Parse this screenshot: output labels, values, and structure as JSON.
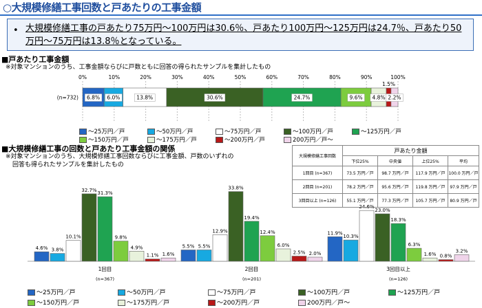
{
  "title": "○大規模修繕工事回数と戸あたりの工事金額",
  "summary": {
    "bullet": "•",
    "text": "大規模修繕工事の戸あたり75万円～100万円は30.6％、戸あたり100万円～125万円は24.7％、戸あたり50万円～75万円は13.8％となっている。"
  },
  "section1": {
    "heading": "■戸あたり工事金額",
    "note": "※対象マンションのうち、工事金額ならびに戸数ともに回答の得られたサンプルを集計したもの"
  },
  "section2": {
    "heading": "■大規模修繕工事の回数と戸あたり工事金額の関係",
    "note1": "※対象マンションのうち、大規模修繕工事回数ならびに工事金額、戸数のいずれの",
    "note2": "回答も得られたサンプルを集計したもの"
  },
  "colors": [
    "#2366c4",
    "#17a9e1",
    "#ffffff",
    "#3a6124",
    "#1fa351",
    "#7dcc3e",
    "#e8f2dc",
    "#b81818",
    "#f0d4ea"
  ],
  "chart_data": [
    {
      "type": "bar",
      "orientation": "stacked-horizontal-100%",
      "row_label": "(n=732)",
      "x_ticks": [
        "0%",
        "10%",
        "20%",
        "30%",
        "40%",
        "50%",
        "60%",
        "70%",
        "80%",
        "90%",
        "100%"
      ],
      "xlim": [
        0,
        100
      ],
      "series": [
        {
          "name": "～25万円／戸",
          "value": 6.8
        },
        {
          "name": "～50万円／戸",
          "value": 6.0
        },
        {
          "name": "～75万円／戸",
          "value": 13.8
        },
        {
          "name": "～100万円／戸",
          "value": 30.6
        },
        {
          "name": "～125万円／戸",
          "value": 24.7
        },
        {
          "name": "～150万円／戸",
          "value": 9.6
        },
        {
          "name": "～175万円／戸",
          "value": 4.8
        },
        {
          "name": "～200万円／戸",
          "value": 1.5
        },
        {
          "name": "200万円／戸～",
          "value": 2.2
        }
      ],
      "labels": [
        "6.8%",
        "6.0%",
        "13.8%",
        "30.6%",
        "24.7%",
        "9.6%",
        "4.8%",
        "1.5%",
        "2.2%"
      ],
      "legend": [
        "～25万円／戸",
        "～50万円／戸",
        "～75万円／戸",
        "～100万円／戸",
        "～125万円／戸",
        "～150万円／戸",
        "～175万円／戸",
        "～200万円／戸",
        "200万円／戸～"
      ],
      "legend_placement": "bottom"
    },
    {
      "type": "bar",
      "orientation": "grouped-vertical",
      "categories": [
        "1回目",
        "2回目",
        "3回目以上"
      ],
      "category_n": [
        "(n=367)",
        "(n=201)",
        "(n=126)"
      ],
      "ylim": [
        0,
        40
      ],
      "series": [
        {
          "name": "～25万円／戸",
          "values": [
            4.6,
            5.5,
            11.9
          ]
        },
        {
          "name": "～50万円／戸",
          "values": [
            3.8,
            5.5,
            10.3
          ]
        },
        {
          "name": "～75万円／戸",
          "values": [
            10.1,
            12.9,
            24.6
          ]
        },
        {
          "name": "～100万円／戸",
          "values": [
            32.7,
            33.8,
            23.0
          ]
        },
        {
          "name": "～125万円／戸",
          "values": [
            31.3,
            19.4,
            18.3
          ]
        },
        {
          "name": "～150万円／戸",
          "values": [
            9.8,
            12.4,
            6.3
          ]
        },
        {
          "name": "～175万円／戸",
          "values": [
            4.9,
            6.0,
            1.6
          ]
        },
        {
          "name": "～200万円／戸",
          "values": [
            1.1,
            2.5,
            0.8
          ]
        },
        {
          "name": "200万円／戸～",
          "values": [
            1.6,
            2.0,
            3.2
          ]
        }
      ],
      "labels": [
        [
          "4.6%",
          "3.8%",
          "10.1%",
          "32.7%",
          "31.3%",
          "9.8%",
          "4.9%",
          "1.1%",
          "1.6%"
        ],
        [
          "5.5%",
          "5.5%",
          "12.9%",
          "33.8%",
          "19.4%",
          "12.4%",
          "6.0%",
          "2.5%",
          "2.0%"
        ],
        [
          "11.9%",
          "10.3%",
          "24.6%",
          "23.0%",
          "18.3%",
          "6.3%",
          "1.6%",
          "0.8%",
          "3.2%"
        ]
      ],
      "legend": [
        "～25万円／戸",
        "～50万円／戸",
        "～75万円／戸",
        "～100万円／戸",
        "～125万円／戸",
        "～150万円／戸",
        "～175万円／戸",
        "～200万円／戸",
        "200万円／戸～"
      ],
      "legend_placement": "bottom"
    }
  ],
  "table": {
    "row_header": "大規模修繕工事回数",
    "group_header": "戸あたり金額",
    "columns": [
      "下位25%",
      "中央値",
      "上位25%",
      "平均"
    ],
    "rows": [
      {
        "label": "1回目 (n=367)",
        "values": [
          "73.5 万円／戸",
          "98.7 万円／戸",
          "117.9 万円／戸",
          "100.0 万円／戸"
        ]
      },
      {
        "label": "2回目 (n=201)",
        "values": [
          "78.2 万円／戸",
          "95.6 万円／戸",
          "119.8 万円／戸",
          "97.9 万円／戸"
        ]
      },
      {
        "label": "3回目以上 (n=126)",
        "values": [
          "55.1 万円／戸",
          "77.3 万円／戸",
          "105.7 万円／戸",
          "80.9 万円／戸"
        ]
      }
    ]
  }
}
